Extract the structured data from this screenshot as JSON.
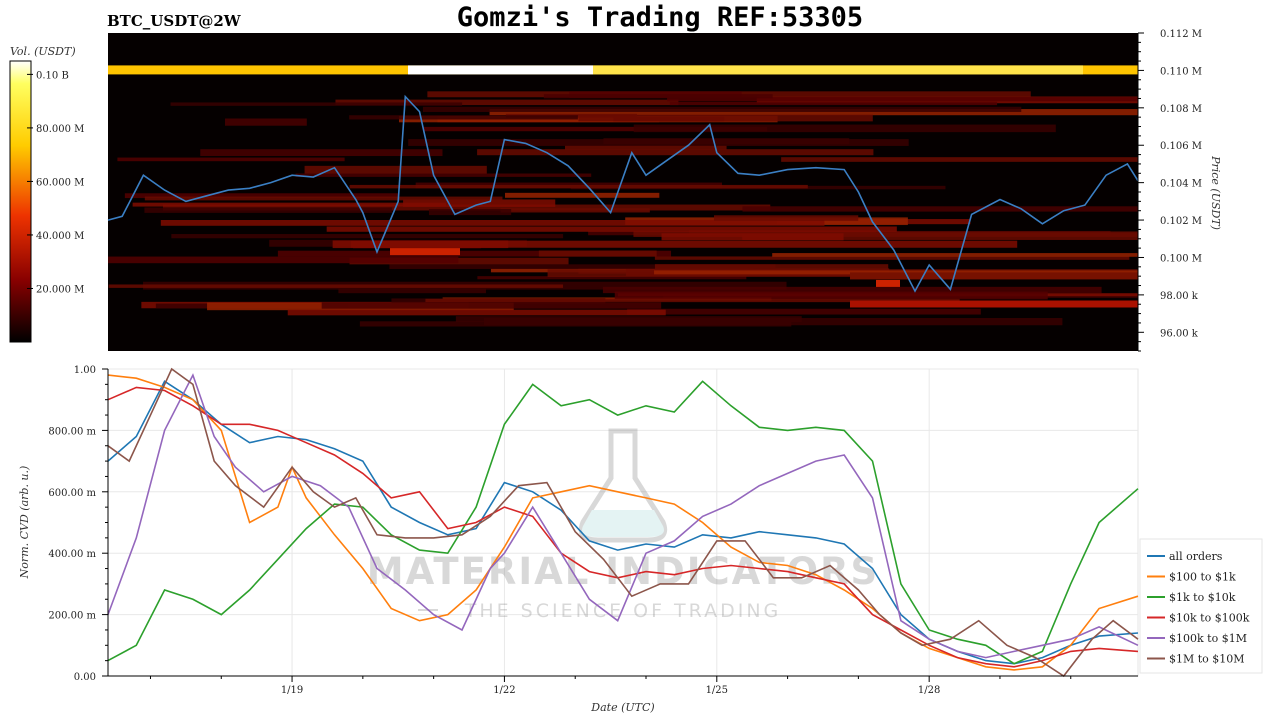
{
  "header": {
    "symbol": "BTC_USDT@2W",
    "title": "Gomzi's Trading REF:53305"
  },
  "watermark": {
    "line1": "MATERIAL INDICATORS",
    "line2": "THE SCIENCE OF TRADING"
  },
  "colors": {
    "price_line": "#3b7fc4",
    "heatmap_bg": "#050000",
    "all_orders": "#1f77b4",
    "usd_100_1k": "#ff7f0e",
    "usd_1k_10k": "#2ca02c",
    "usd_10k_100k": "#d62728",
    "usd_100k_1m": "#9467bd",
    "usd_1m_10m": "#8c564b"
  },
  "chart_data": [
    {
      "type": "heatmap",
      "title": "Gomzi's Trading REF:53305",
      "xlabel": "",
      "ylabel": "Price (USDT)",
      "ylim": [
        95000,
        112000
      ],
      "yticks": [
        {
          "value": 112000,
          "label": "0.112 M"
        },
        {
          "value": 110000,
          "label": "0.110 M"
        },
        {
          "value": 108000,
          "label": "0.108 M"
        },
        {
          "value": 106000,
          "label": "0.106 M"
        },
        {
          "value": 104000,
          "label": "0.104 M"
        },
        {
          "value": 102000,
          "label": "0.102 M"
        },
        {
          "value": 100000,
          "label": "0.100 M"
        },
        {
          "value": 98000,
          "label": "98.00 k"
        },
        {
          "value": 96000,
          "label": "96.00 k"
        }
      ],
      "xlim": [
        16.4,
        30.95
      ],
      "colorbar": {
        "label": "Vol. (USDT)",
        "ticks": [
          {
            "value": 0.1,
            "label": "0.10 B"
          },
          {
            "value": 0.08,
            "label": "80.000 M"
          },
          {
            "value": 0.06,
            "label": "60.000 M"
          },
          {
            "value": 0.04,
            "label": "40.000 M"
          },
          {
            "value": 0.02,
            "label": "20.000 M"
          }
        ]
      },
      "price_series": {
        "x": [
          16.4,
          16.6,
          16.9,
          17.2,
          17.5,
          17.8,
          18.1,
          18.4,
          18.7,
          19.0,
          19.3,
          19.6,
          19.9,
          20.0,
          20.2,
          20.5,
          20.6,
          20.8,
          21.0,
          21.3,
          21.6,
          21.8,
          22.0,
          22.3,
          22.6,
          22.9,
          23.2,
          23.5,
          23.8,
          24.0,
          24.3,
          24.6,
          24.9,
          25.0,
          25.3,
          25.6,
          26.0,
          26.4,
          26.8,
          27.0,
          27.2,
          27.5,
          27.8,
          28.0,
          28.3,
          28.6,
          29.0,
          29.3,
          29.6,
          29.9,
          30.2,
          30.5,
          30.8,
          30.95
        ],
        "y": [
          102000,
          102200,
          104400,
          103600,
          103000,
          103300,
          103600,
          103700,
          104000,
          104400,
          104300,
          104800,
          103100,
          102400,
          100300,
          103000,
          108600,
          107800,
          104400,
          102300,
          102800,
          103000,
          106300,
          106100,
          105600,
          104900,
          103700,
          102400,
          105600,
          104400,
          105200,
          106000,
          107100,
          105600,
          104500,
          104400,
          104700,
          104800,
          104700,
          103500,
          101900,
          100400,
          98200,
          99600,
          98300,
          102300,
          103100,
          102600,
          101800,
          102500,
          102800,
          104400,
          105000,
          104100
        ]
      }
    },
    {
      "type": "line",
      "title": "",
      "xlabel": "Date (UTC)",
      "ylabel": "Norm. CVD (arb. u.)",
      "ylim": [
        0,
        1
      ],
      "xlim": [
        16.4,
        30.95
      ],
      "x_tick_labels": [
        {
          "value": 19,
          "label": "1/19"
        },
        {
          "value": 22,
          "label": "1/22"
        },
        {
          "value": 25,
          "label": "1/25"
        },
        {
          "value": 28,
          "label": "1/28"
        }
      ],
      "y_tick_labels": [
        {
          "value": 1.0,
          "label": "1.00"
        },
        {
          "value": 0.8,
          "label": "800.00 m"
        },
        {
          "value": 0.6,
          "label": "600.00 m"
        },
        {
          "value": 0.4,
          "label": "400.00 m"
        },
        {
          "value": 0.2,
          "label": "200.00 m"
        },
        {
          "value": 0.0,
          "label": "0.00"
        }
      ],
      "grid": true,
      "legend": "right",
      "series": [
        {
          "name": "all orders",
          "color_key": "all_orders",
          "x": [
            16.4,
            16.8,
            17.2,
            17.6,
            18.0,
            18.4,
            18.8,
            19.2,
            19.6,
            20.0,
            20.4,
            20.8,
            21.2,
            21.6,
            22.0,
            22.4,
            22.8,
            23.2,
            23.6,
            24.0,
            24.4,
            24.8,
            25.2,
            25.6,
            26.0,
            26.4,
            26.8,
            27.2,
            27.6,
            28.0,
            28.4,
            28.8,
            29.2,
            29.6,
            30.0,
            30.4,
            30.95
          ],
          "y": [
            0.7,
            0.78,
            0.96,
            0.9,
            0.82,
            0.76,
            0.78,
            0.77,
            0.74,
            0.7,
            0.55,
            0.5,
            0.46,
            0.48,
            0.63,
            0.6,
            0.54,
            0.44,
            0.41,
            0.43,
            0.42,
            0.46,
            0.45,
            0.47,
            0.46,
            0.45,
            0.43,
            0.35,
            0.2,
            0.12,
            0.08,
            0.05,
            0.04,
            0.06,
            0.1,
            0.13,
            0.14
          ]
        },
        {
          "name": "$100 to $1k",
          "color_key": "usd_100_1k",
          "x": [
            16.4,
            16.8,
            17.2,
            17.6,
            18.0,
            18.4,
            18.8,
            19.0,
            19.2,
            19.6,
            20.0,
            20.4,
            20.8,
            21.2,
            21.6,
            22.0,
            22.4,
            22.8,
            23.2,
            23.6,
            24.0,
            24.4,
            24.8,
            25.2,
            25.6,
            26.0,
            26.4,
            26.8,
            27.2,
            27.6,
            28.0,
            28.4,
            28.8,
            29.2,
            29.6,
            30.0,
            30.4,
            30.95
          ],
          "y": [
            0.98,
            0.97,
            0.94,
            0.9,
            0.8,
            0.5,
            0.55,
            0.68,
            0.58,
            0.46,
            0.35,
            0.22,
            0.18,
            0.2,
            0.28,
            0.42,
            0.58,
            0.6,
            0.62,
            0.6,
            0.58,
            0.56,
            0.5,
            0.42,
            0.37,
            0.36,
            0.33,
            0.28,
            0.22,
            0.14,
            0.09,
            0.06,
            0.03,
            0.02,
            0.03,
            0.1,
            0.22,
            0.26
          ]
        },
        {
          "name": "$1k to $10k",
          "color_key": "usd_1k_10k",
          "x": [
            16.4,
            16.8,
            17.2,
            17.6,
            18.0,
            18.4,
            18.8,
            19.2,
            19.6,
            20.0,
            20.4,
            20.8,
            21.2,
            21.6,
            22.0,
            22.4,
            22.8,
            23.2,
            23.6,
            24.0,
            24.4,
            24.8,
            25.2,
            25.6,
            26.0,
            26.4,
            26.8,
            27.2,
            27.6,
            28.0,
            28.4,
            28.8,
            29.2,
            29.6,
            30.0,
            30.4,
            30.95
          ],
          "y": [
            0.05,
            0.1,
            0.28,
            0.25,
            0.2,
            0.28,
            0.38,
            0.48,
            0.56,
            0.55,
            0.46,
            0.41,
            0.4,
            0.55,
            0.82,
            0.95,
            0.88,
            0.9,
            0.85,
            0.88,
            0.86,
            0.96,
            0.88,
            0.81,
            0.8,
            0.81,
            0.8,
            0.7,
            0.3,
            0.15,
            0.12,
            0.1,
            0.04,
            0.08,
            0.3,
            0.5,
            0.61
          ]
        },
        {
          "name": "$10k to $100k",
          "color_key": "usd_10k_100k",
          "x": [
            16.4,
            16.8,
            17.2,
            17.6,
            18.0,
            18.4,
            18.8,
            19.2,
            19.6,
            20.0,
            20.4,
            20.8,
            21.2,
            21.6,
            22.0,
            22.4,
            22.8,
            23.2,
            23.6,
            24.0,
            24.4,
            24.8,
            25.2,
            25.6,
            26.0,
            26.4,
            26.8,
            27.2,
            27.6,
            28.0,
            28.4,
            28.8,
            29.2,
            29.6,
            30.0,
            30.4,
            30.95
          ],
          "y": [
            0.9,
            0.94,
            0.93,
            0.88,
            0.82,
            0.82,
            0.8,
            0.76,
            0.72,
            0.66,
            0.58,
            0.6,
            0.48,
            0.5,
            0.55,
            0.52,
            0.4,
            0.34,
            0.32,
            0.34,
            0.33,
            0.35,
            0.36,
            0.35,
            0.34,
            0.32,
            0.3,
            0.2,
            0.15,
            0.1,
            0.06,
            0.04,
            0.03,
            0.05,
            0.08,
            0.09,
            0.08
          ]
        },
        {
          "name": "$100k to $1M",
          "color_key": "usd_100k_1m",
          "x": [
            16.4,
            16.8,
            17.2,
            17.6,
            17.9,
            18.2,
            18.6,
            19.0,
            19.4,
            19.8,
            20.2,
            20.6,
            21.0,
            21.4,
            21.8,
            22.0,
            22.4,
            22.8,
            23.2,
            23.6,
            24.0,
            24.4,
            24.8,
            25.2,
            25.6,
            26.0,
            26.4,
            26.8,
            27.2,
            27.6,
            28.0,
            28.4,
            28.8,
            29.2,
            29.6,
            30.0,
            30.4,
            30.95
          ],
          "y": [
            0.2,
            0.45,
            0.8,
            0.98,
            0.78,
            0.68,
            0.6,
            0.65,
            0.62,
            0.55,
            0.35,
            0.28,
            0.2,
            0.15,
            0.35,
            0.4,
            0.55,
            0.4,
            0.25,
            0.18,
            0.4,
            0.44,
            0.52,
            0.56,
            0.62,
            0.66,
            0.7,
            0.72,
            0.58,
            0.18,
            0.12,
            0.08,
            0.06,
            0.08,
            0.1,
            0.12,
            0.16,
            0.1
          ]
        },
        {
          "name": "$1M to $10M",
          "color_key": "usd_1m_10m",
          "x": [
            16.4,
            16.7,
            17.0,
            17.3,
            17.6,
            17.9,
            18.2,
            18.6,
            19.0,
            19.3,
            19.6,
            19.9,
            20.2,
            20.6,
            21.0,
            21.4,
            21.8,
            22.2,
            22.6,
            23.0,
            23.4,
            23.8,
            24.2,
            24.6,
            25.0,
            25.4,
            25.8,
            26.2,
            26.6,
            27.0,
            27.3,
            27.6,
            27.9,
            28.3,
            28.7,
            29.1,
            29.5,
            29.9,
            30.3,
            30.6,
            30.95
          ],
          "y": [
            0.75,
            0.7,
            0.85,
            1.0,
            0.95,
            0.7,
            0.62,
            0.55,
            0.68,
            0.6,
            0.55,
            0.58,
            0.46,
            0.45,
            0.45,
            0.46,
            0.52,
            0.62,
            0.63,
            0.47,
            0.38,
            0.26,
            0.3,
            0.3,
            0.44,
            0.44,
            0.32,
            0.32,
            0.36,
            0.28,
            0.2,
            0.14,
            0.1,
            0.12,
            0.18,
            0.1,
            0.06,
            0.0,
            0.12,
            0.18,
            0.12
          ]
        }
      ]
    }
  ]
}
